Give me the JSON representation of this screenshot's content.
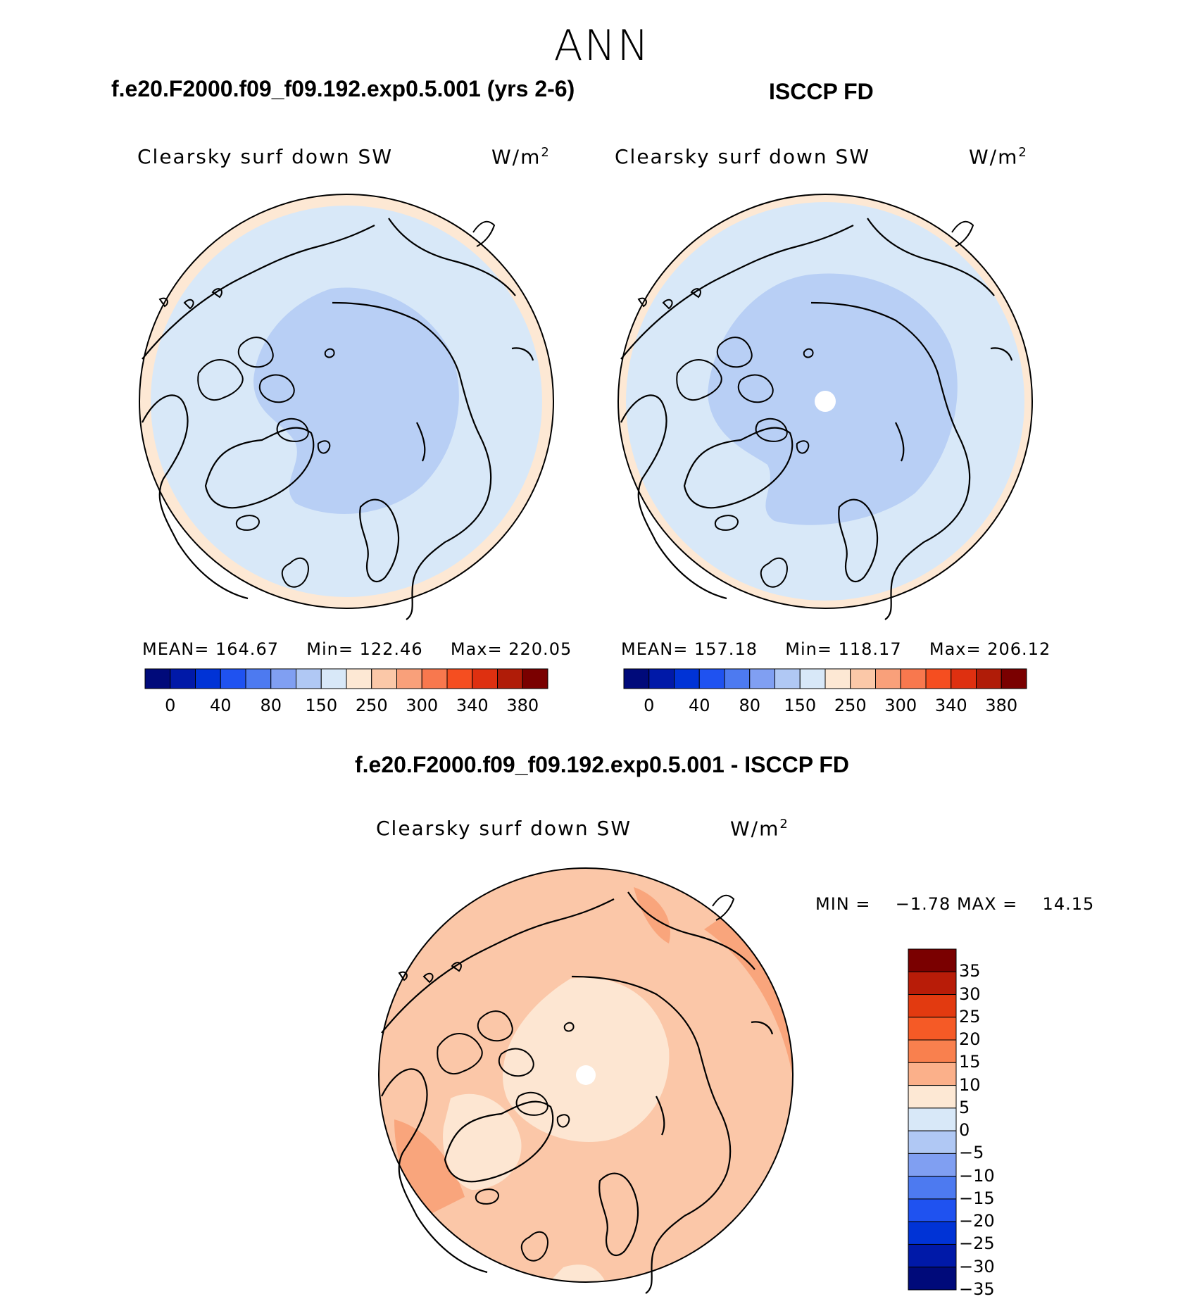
{
  "figure": {
    "season": "ANN"
  },
  "panels": {
    "model": {
      "title": "f.e20.F2000.f09_f09.192.exp0.5.001 (yrs 2-6)",
      "variable": "Clearsky surf down SW",
      "units": "W/m",
      "units_sup": "2",
      "mean_label": "MEAN=",
      "mean_value": "164.67",
      "min_label": "Min=",
      "min_value": "122.46",
      "max_label": "Max=",
      "max_value": "220.05"
    },
    "obs": {
      "title": "ISCCP FD",
      "variable": "Clearsky surf down SW",
      "units": "W/m",
      "units_sup": "2",
      "mean_label": "MEAN=",
      "mean_value": "157.18",
      "min_label": "Min=",
      "min_value": "118.17",
      "max_label": "Max=",
      "max_value": "206.12"
    },
    "diff": {
      "title": "f.e20.F2000.f09_f09.192.exp0.5.001 - ISCCP FD",
      "variable": "Clearsky surf down SW",
      "units": "W/m",
      "units_sup": "2",
      "min_label": "MIN =",
      "min_value": "−1.78",
      "max_label": "MAX =",
      "max_value": "14.15"
    }
  },
  "colorbars": {
    "absolute": {
      "colors": [
        "#000a7a",
        "#0019a8",
        "#0033d6",
        "#1f52f0",
        "#4d7af0",
        "#809ff2",
        "#b0c8f4",
        "#d8e8f8",
        "#fde8d4",
        "#fbc8a8",
        "#f9a07a",
        "#f8784e",
        "#f54e20",
        "#de3010",
        "#b01c08",
        "#7a0000"
      ],
      "tick_labels": [
        "0",
        "40",
        "80",
        "150",
        "250",
        "300",
        "340",
        "380"
      ]
    },
    "difference": {
      "colors": [
        "#000a7a",
        "#0019a8",
        "#0033d6",
        "#1f52f0",
        "#4d7af0",
        "#809ff2",
        "#b0c8f4",
        "#d8e8f8",
        "#fde8d4",
        "#fbb08a",
        "#f9804e",
        "#f55a26",
        "#e23a10",
        "#b81c08",
        "#7a0000"
      ],
      "tick_labels": [
        "35",
        "30",
        "25",
        "20",
        "15",
        "10",
        "5",
        "0",
        "−5",
        "−10",
        "−15",
        "−20",
        "−25",
        "−30",
        "−35"
      ]
    }
  },
  "maps": {
    "fill_colors": {
      "ocean_low": "#d8e8f8",
      "polar_low": "#b8cff5",
      "rim_warm": "#fde8d4",
      "diff_light": "#fde6d2",
      "diff_mid": "#fbc7a8",
      "diff_high": "#f9a57c",
      "missing": "#ffffff"
    }
  }
}
